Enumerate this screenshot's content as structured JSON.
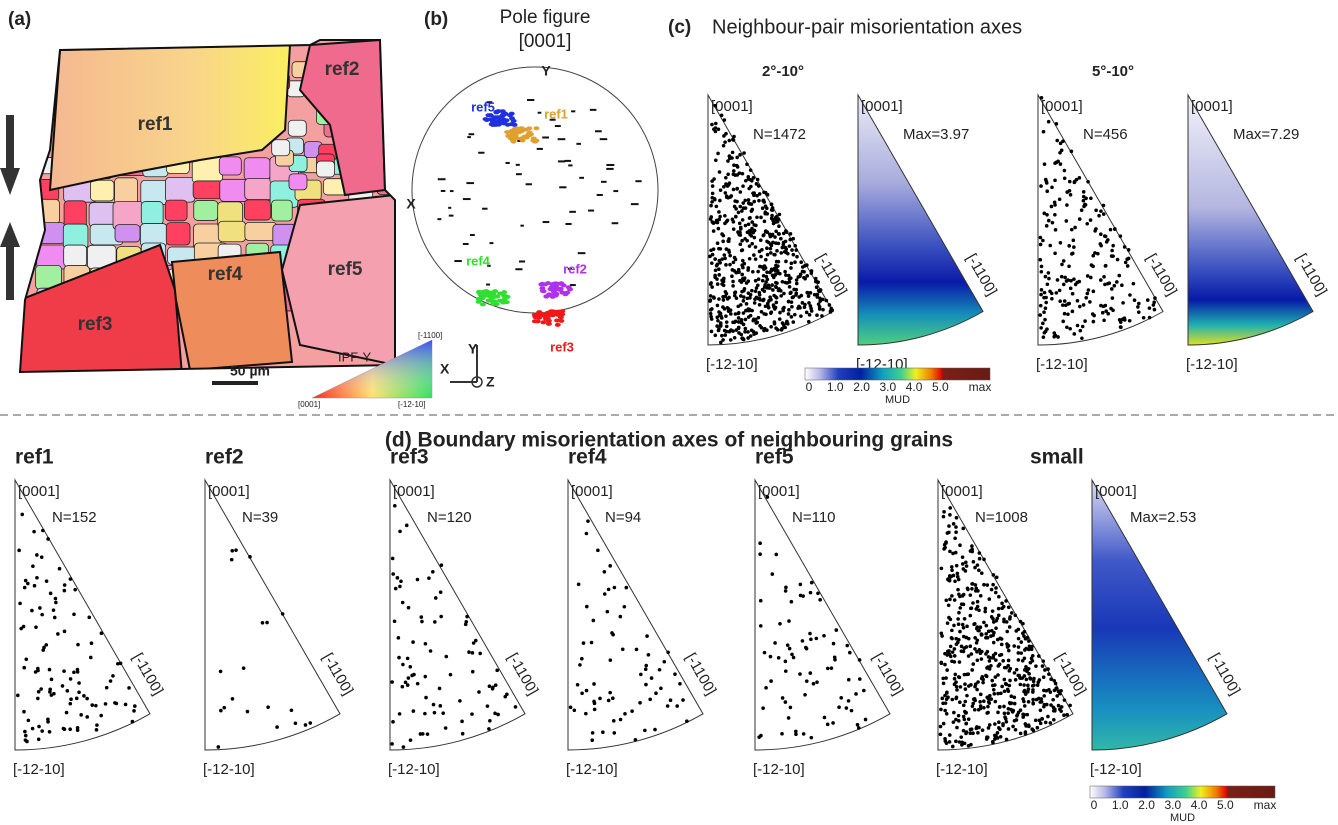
{
  "panels": {
    "a": {
      "label": "(a)",
      "grains": [
        "ref1",
        "ref2",
        "ref3",
        "ref4",
        "ref5"
      ],
      "scale_bar": "50 µm",
      "ipf_title": "IPF-Y",
      "ipf_corners": {
        "top": "[-1100]",
        "left": "[0001]",
        "right": "[-12-10]"
      }
    },
    "b": {
      "label": "(b)",
      "title": "Pole figure",
      "subtitle": "[0001]",
      "axis_y": "Y",
      "axis_x": "X",
      "refs": [
        "ref5",
        "ref1",
        "ref4",
        "ref2",
        "ref3"
      ],
      "triad": {
        "y": "Y",
        "x": "X",
        "z": "Z"
      }
    },
    "c": {
      "label": "(c)",
      "title": "Neighbour-pair misorientation axes",
      "groups": [
        {
          "range": "2°-10°",
          "count": "N=1472",
          "max": "Max=3.97"
        },
        {
          "range": "5°-10°",
          "count": "N=456",
          "max": "Max=7.29"
        }
      ],
      "colorbar": {
        "ticks": [
          "0",
          "1.0",
          "2.0",
          "3.0",
          "4.0",
          "5.0",
          "max"
        ],
        "label": "MUD"
      }
    },
    "d": {
      "title": "(d) Boundary misorientation axes of neighbouring grains",
      "plots": [
        {
          "name": "ref1",
          "count": "N=152"
        },
        {
          "name": "ref2",
          "count": "N=39"
        },
        {
          "name": "ref3",
          "count": "N=120"
        },
        {
          "name": "ref4",
          "count": "N=94"
        },
        {
          "name": "ref5",
          "count": "N=110"
        },
        {
          "name": "small",
          "count": "N=1008"
        }
      ],
      "density_max": "Max=2.53",
      "colorbar": {
        "ticks": [
          "0",
          "1.0",
          "2.0",
          "3.0",
          "4.0",
          "5.0",
          "max"
        ],
        "label": "MUD"
      }
    }
  },
  "ipf_labels": {
    "top": "[0001]",
    "side": "[-1100]",
    "bottom": "[-12-10]"
  }
}
